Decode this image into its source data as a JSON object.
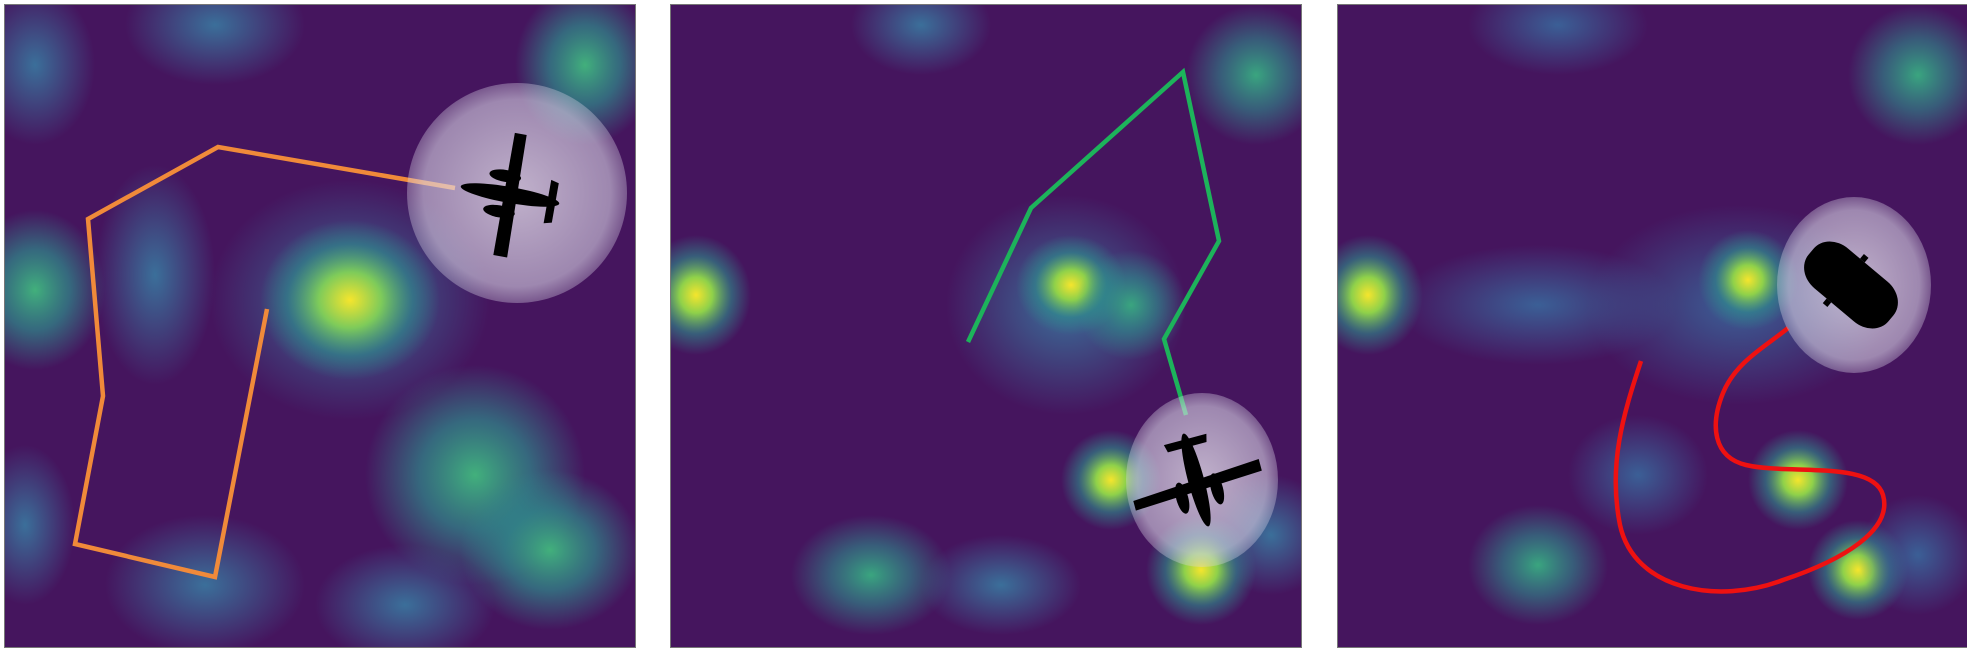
{
  "figure": {
    "panels": [
      {
        "id": "p1",
        "agent": "airplane-icon",
        "trajectory_color": "#f08a3a",
        "trajectory_style": "polyline"
      },
      {
        "id": "p2",
        "agent": "airplane-icon",
        "trajectory_color": "#1db35b",
        "trajectory_style": "polyline"
      },
      {
        "id": "p3",
        "agent": "car-icon",
        "trajectory_color": "#ee1111",
        "trajectory_style": "smooth-curve"
      }
    ],
    "colormap": {
      "low": "#45155e",
      "mid": "#2f8d8c",
      "high": "#f5e52d"
    },
    "agent_halo_color": "#d9d4e6",
    "agent_color": "#000000"
  }
}
